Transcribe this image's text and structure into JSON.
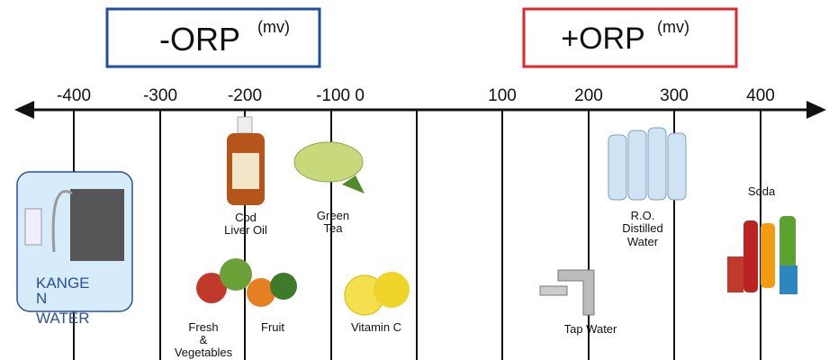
{
  "header": {
    "negative_label": "-ORP",
    "negative_unit": "(mv)",
    "positive_label": "+ORP",
    "positive_unit": "(mv)"
  },
  "scale": {
    "tick_labels": [
      "-400",
      "-300",
      "-200",
      "-100 0",
      "100",
      "200",
      "300",
      "400"
    ]
  },
  "items": {
    "kangen": [
      "KANGE",
      "N",
      "WATER"
    ],
    "cod_liver_oil": [
      "Cod",
      "Liver Oil"
    ],
    "green_tea": [
      "Green",
      "Tea"
    ],
    "fresh_vegetables": [
      "Fresh",
      "&",
      "Vegetables"
    ],
    "fruit": "Fruit",
    "vitamin_c": "Vitamin C",
    "tap_water": "Tap Water",
    "ro_water": [
      "R.O.",
      "Distilled",
      "Water"
    ],
    "soda": "Soda"
  }
}
